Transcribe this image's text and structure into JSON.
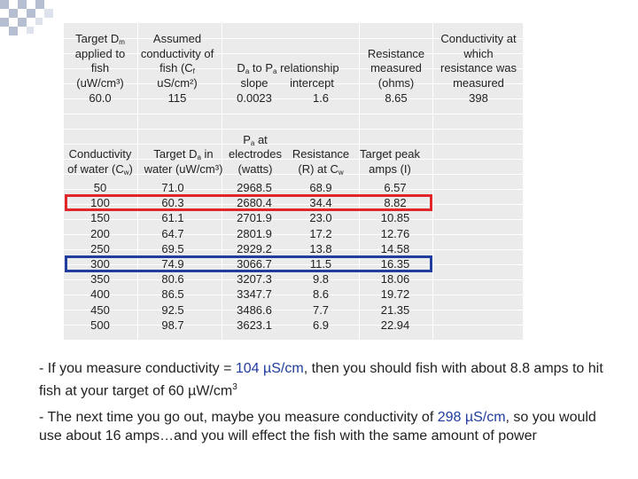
{
  "parameters": {
    "columns": [
      {
        "header": [
          [
            "Target D",
            "m"
          ],
          [
            "applied to"
          ],
          [
            "fish"
          ],
          [
            "(uW/cm³)"
          ]
        ],
        "value": "60.0"
      },
      {
        "header": [
          [
            "Assumed"
          ],
          [
            "conductivity of"
          ],
          [
            "fish (C",
            "f"
          ],
          [
            "uS/cm²)"
          ]
        ],
        "value": "115"
      },
      {
        "header": [
          [
            "Resistance"
          ],
          [
            "measured"
          ],
          [
            "(ohms)"
          ]
        ],
        "value": "8.65"
      },
      {
        "header": [
          [
            "Conductivity at"
          ],
          [
            "which"
          ],
          [
            "resistance was"
          ],
          [
            "measured"
          ]
        ],
        "value": "398"
      }
    ],
    "relationship": {
      "header": [
        "D",
        "a",
        " to P",
        "a",
        " relationship"
      ],
      "slope": {
        "label": "slope",
        "value": "0.0023"
      },
      "intercept": {
        "label": "intercept",
        "value": "1.6"
      }
    }
  },
  "table": {
    "header": [
      [
        [
          "Conductivity"
        ],
        [
          "of water (C",
          "w",
          ")"
        ]
      ],
      [
        [
          "Target D",
          "a",
          " in"
        ],
        [
          "water (uW/cm³)"
        ]
      ],
      [
        [
          "P",
          "a",
          " at"
        ],
        [
          "electrodes"
        ],
        [
          "(watts)"
        ]
      ],
      [
        [
          "Resistance"
        ],
        [
          "(R) at C",
          "w"
        ]
      ],
      [
        [
          "Target peak"
        ],
        [
          "amps (I)"
        ]
      ]
    ],
    "rows": [
      {
        "cells": [
          "50",
          "71.0",
          "2968.5",
          "68.9",
          "6.57"
        ]
      },
      {
        "cells": [
          "100",
          "60.3",
          "2680.4",
          "34.4",
          "8.82"
        ],
        "outline": "#e0262b"
      },
      {
        "cells": [
          "150",
          "61.1",
          "2701.9",
          "23.0",
          "10.85"
        ]
      },
      {
        "cells": [
          "200",
          "64.7",
          "2801.9",
          "17.2",
          "12.76"
        ]
      },
      {
        "cells": [
          "250",
          "69.5",
          "2929.2",
          "13.8",
          "14.58"
        ]
      },
      {
        "cells": [
          "300",
          "74.9",
          "3066.7",
          "11.5",
          "16.35"
        ],
        "outline": "#1f3c9e"
      },
      {
        "cells": [
          "350",
          "80.6",
          "3207.3",
          "9.8",
          "18.06"
        ]
      },
      {
        "cells": [
          "400",
          "86.5",
          "3347.7",
          "8.6",
          "19.72"
        ]
      },
      {
        "cells": [
          "450",
          "92.5",
          "3486.6",
          "7.7",
          "21.35"
        ]
      },
      {
        "cells": [
          "500",
          "98.7",
          "3623.1",
          "6.9",
          "22.94"
        ]
      }
    ]
  },
  "notes": [
    [
      {
        "text": "- If you measure conductivity = "
      },
      {
        "text": "104 µS/cm",
        "style": "highlight"
      },
      {
        "text": ", then you should fish with about 8.8 amps to hit fish at your target of 60 µW/cm"
      },
      {
        "text": "3",
        "style": "sup"
      }
    ],
    [
      {
        "text": "- The next time you go out, maybe you measure conductivity of "
      },
      {
        "text": "298 µS/cm",
        "style": "highlight"
      },
      {
        "text": ", so you would use  about 16 amps…and you will effect the fish with the same amount of power"
      }
    ]
  ]
}
